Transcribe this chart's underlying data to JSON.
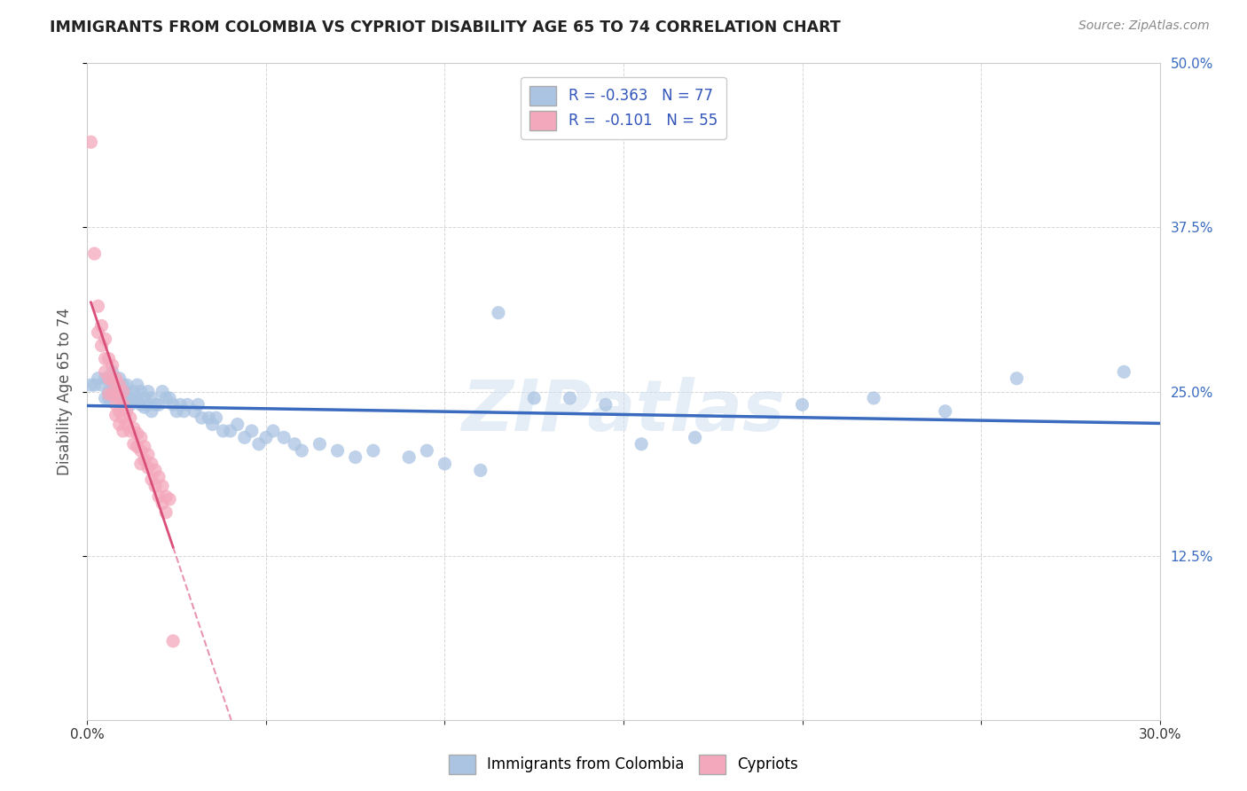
{
  "title": "IMMIGRANTS FROM COLOMBIA VS CYPRIOT DISABILITY AGE 65 TO 74 CORRELATION CHART",
  "source_text": "Source: ZipAtlas.com",
  "ylabel": "Disability Age 65 to 74",
  "xlim": [
    0.0,
    0.3
  ],
  "ylim": [
    0.0,
    0.5
  ],
  "colombia_R": -0.363,
  "colombia_N": 77,
  "cypriot_R": -0.101,
  "cypriot_N": 55,
  "colombia_color": "#aac4e2",
  "cypriot_color": "#f4a8bc",
  "colombia_line_color": "#3a6bbf",
  "cypriot_line_color": "#d94f7a",
  "background_color": "#ffffff",
  "grid_color": "#cccccc",
  "watermark_text": "ZIPatlas",
  "legend_label_colombia": "Immigrants from Colombia",
  "legend_label_cypriot": "Cypriots",
  "colombia_scatter": [
    [
      0.001,
      0.255
    ],
    [
      0.002,
      0.255
    ],
    [
      0.003,
      0.26
    ],
    [
      0.004,
      0.255
    ],
    [
      0.005,
      0.26
    ],
    [
      0.005,
      0.245
    ],
    [
      0.006,
      0.25
    ],
    [
      0.006,
      0.245
    ],
    [
      0.007,
      0.265
    ],
    [
      0.007,
      0.255
    ],
    [
      0.008,
      0.255
    ],
    [
      0.008,
      0.245
    ],
    [
      0.009,
      0.26
    ],
    [
      0.009,
      0.25
    ],
    [
      0.01,
      0.255
    ],
    [
      0.01,
      0.245
    ],
    [
      0.011,
      0.255
    ],
    [
      0.011,
      0.25
    ],
    [
      0.012,
      0.245
    ],
    [
      0.012,
      0.24
    ],
    [
      0.013,
      0.25
    ],
    [
      0.013,
      0.245
    ],
    [
      0.014,
      0.255
    ],
    [
      0.014,
      0.245
    ],
    [
      0.015,
      0.25
    ],
    [
      0.015,
      0.24
    ],
    [
      0.016,
      0.245
    ],
    [
      0.016,
      0.238
    ],
    [
      0.017,
      0.25
    ],
    [
      0.017,
      0.24
    ],
    [
      0.018,
      0.245
    ],
    [
      0.018,
      0.235
    ],
    [
      0.019,
      0.24
    ],
    [
      0.02,
      0.24
    ],
    [
      0.021,
      0.25
    ],
    [
      0.022,
      0.245
    ],
    [
      0.023,
      0.245
    ],
    [
      0.024,
      0.24
    ],
    [
      0.025,
      0.235
    ],
    [
      0.026,
      0.24
    ],
    [
      0.027,
      0.235
    ],
    [
      0.028,
      0.24
    ],
    [
      0.03,
      0.235
    ],
    [
      0.031,
      0.24
    ],
    [
      0.032,
      0.23
    ],
    [
      0.034,
      0.23
    ],
    [
      0.035,
      0.225
    ],
    [
      0.036,
      0.23
    ],
    [
      0.038,
      0.22
    ],
    [
      0.04,
      0.22
    ],
    [
      0.042,
      0.225
    ],
    [
      0.044,
      0.215
    ],
    [
      0.046,
      0.22
    ],
    [
      0.048,
      0.21
    ],
    [
      0.05,
      0.215
    ],
    [
      0.052,
      0.22
    ],
    [
      0.055,
      0.215
    ],
    [
      0.058,
      0.21
    ],
    [
      0.06,
      0.205
    ],
    [
      0.065,
      0.21
    ],
    [
      0.07,
      0.205
    ],
    [
      0.075,
      0.2
    ],
    [
      0.08,
      0.205
    ],
    [
      0.09,
      0.2
    ],
    [
      0.095,
      0.205
    ],
    [
      0.1,
      0.195
    ],
    [
      0.11,
      0.19
    ],
    [
      0.115,
      0.31
    ],
    [
      0.125,
      0.245
    ],
    [
      0.135,
      0.245
    ],
    [
      0.145,
      0.24
    ],
    [
      0.155,
      0.21
    ],
    [
      0.17,
      0.215
    ],
    [
      0.2,
      0.24
    ],
    [
      0.22,
      0.245
    ],
    [
      0.24,
      0.235
    ],
    [
      0.26,
      0.26
    ],
    [
      0.29,
      0.265
    ]
  ],
  "cypriot_scatter": [
    [
      0.001,
      0.44
    ],
    [
      0.002,
      0.355
    ],
    [
      0.003,
      0.315
    ],
    [
      0.003,
      0.295
    ],
    [
      0.004,
      0.3
    ],
    [
      0.004,
      0.285
    ],
    [
      0.005,
      0.29
    ],
    [
      0.005,
      0.275
    ],
    [
      0.005,
      0.265
    ],
    [
      0.006,
      0.275
    ],
    [
      0.006,
      0.26
    ],
    [
      0.006,
      0.248
    ],
    [
      0.007,
      0.27
    ],
    [
      0.007,
      0.258
    ],
    [
      0.007,
      0.248
    ],
    [
      0.008,
      0.26
    ],
    [
      0.008,
      0.25
    ],
    [
      0.008,
      0.24
    ],
    [
      0.008,
      0.232
    ],
    [
      0.009,
      0.255
    ],
    [
      0.009,
      0.245
    ],
    [
      0.009,
      0.235
    ],
    [
      0.009,
      0.225
    ],
    [
      0.01,
      0.25
    ],
    [
      0.01,
      0.24
    ],
    [
      0.01,
      0.23
    ],
    [
      0.01,
      0.22
    ],
    [
      0.011,
      0.235
    ],
    [
      0.011,
      0.225
    ],
    [
      0.012,
      0.23
    ],
    [
      0.012,
      0.22
    ],
    [
      0.013,
      0.222
    ],
    [
      0.013,
      0.21
    ],
    [
      0.014,
      0.218
    ],
    [
      0.014,
      0.208
    ],
    [
      0.015,
      0.215
    ],
    [
      0.015,
      0.205
    ],
    [
      0.015,
      0.195
    ],
    [
      0.016,
      0.208
    ],
    [
      0.016,
      0.198
    ],
    [
      0.017,
      0.202
    ],
    [
      0.017,
      0.192
    ],
    [
      0.018,
      0.195
    ],
    [
      0.018,
      0.183
    ],
    [
      0.019,
      0.19
    ],
    [
      0.019,
      0.178
    ],
    [
      0.02,
      0.185
    ],
    [
      0.02,
      0.17
    ],
    [
      0.021,
      0.178
    ],
    [
      0.021,
      0.165
    ],
    [
      0.022,
      0.17
    ],
    [
      0.022,
      0.158
    ],
    [
      0.023,
      0.168
    ],
    [
      0.024,
      0.06
    ]
  ]
}
